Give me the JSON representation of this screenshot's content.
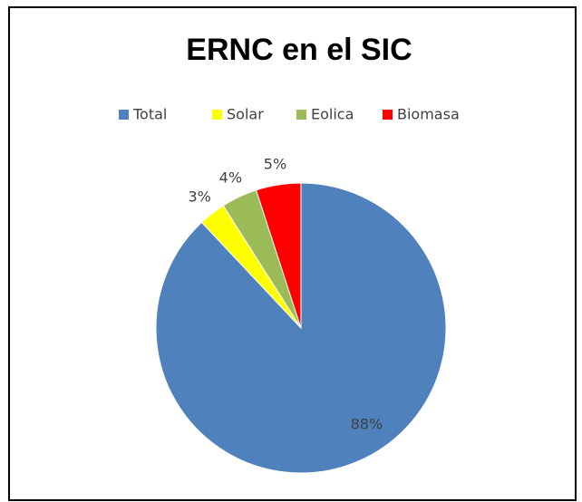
{
  "chart_data": {
    "type": "pie",
    "title": "ERNC en el SIC",
    "categories": [
      "Total",
      "Solar",
      "Eolica",
      "Biomasa"
    ],
    "values": [
      88,
      3,
      4,
      5
    ],
    "value_labels": [
      "88%",
      "3%",
      "4%",
      "5%"
    ],
    "colors": [
      "#4f81bd",
      "#ffff00",
      "#9bbb59",
      "#ff0000"
    ],
    "legend": "top"
  }
}
